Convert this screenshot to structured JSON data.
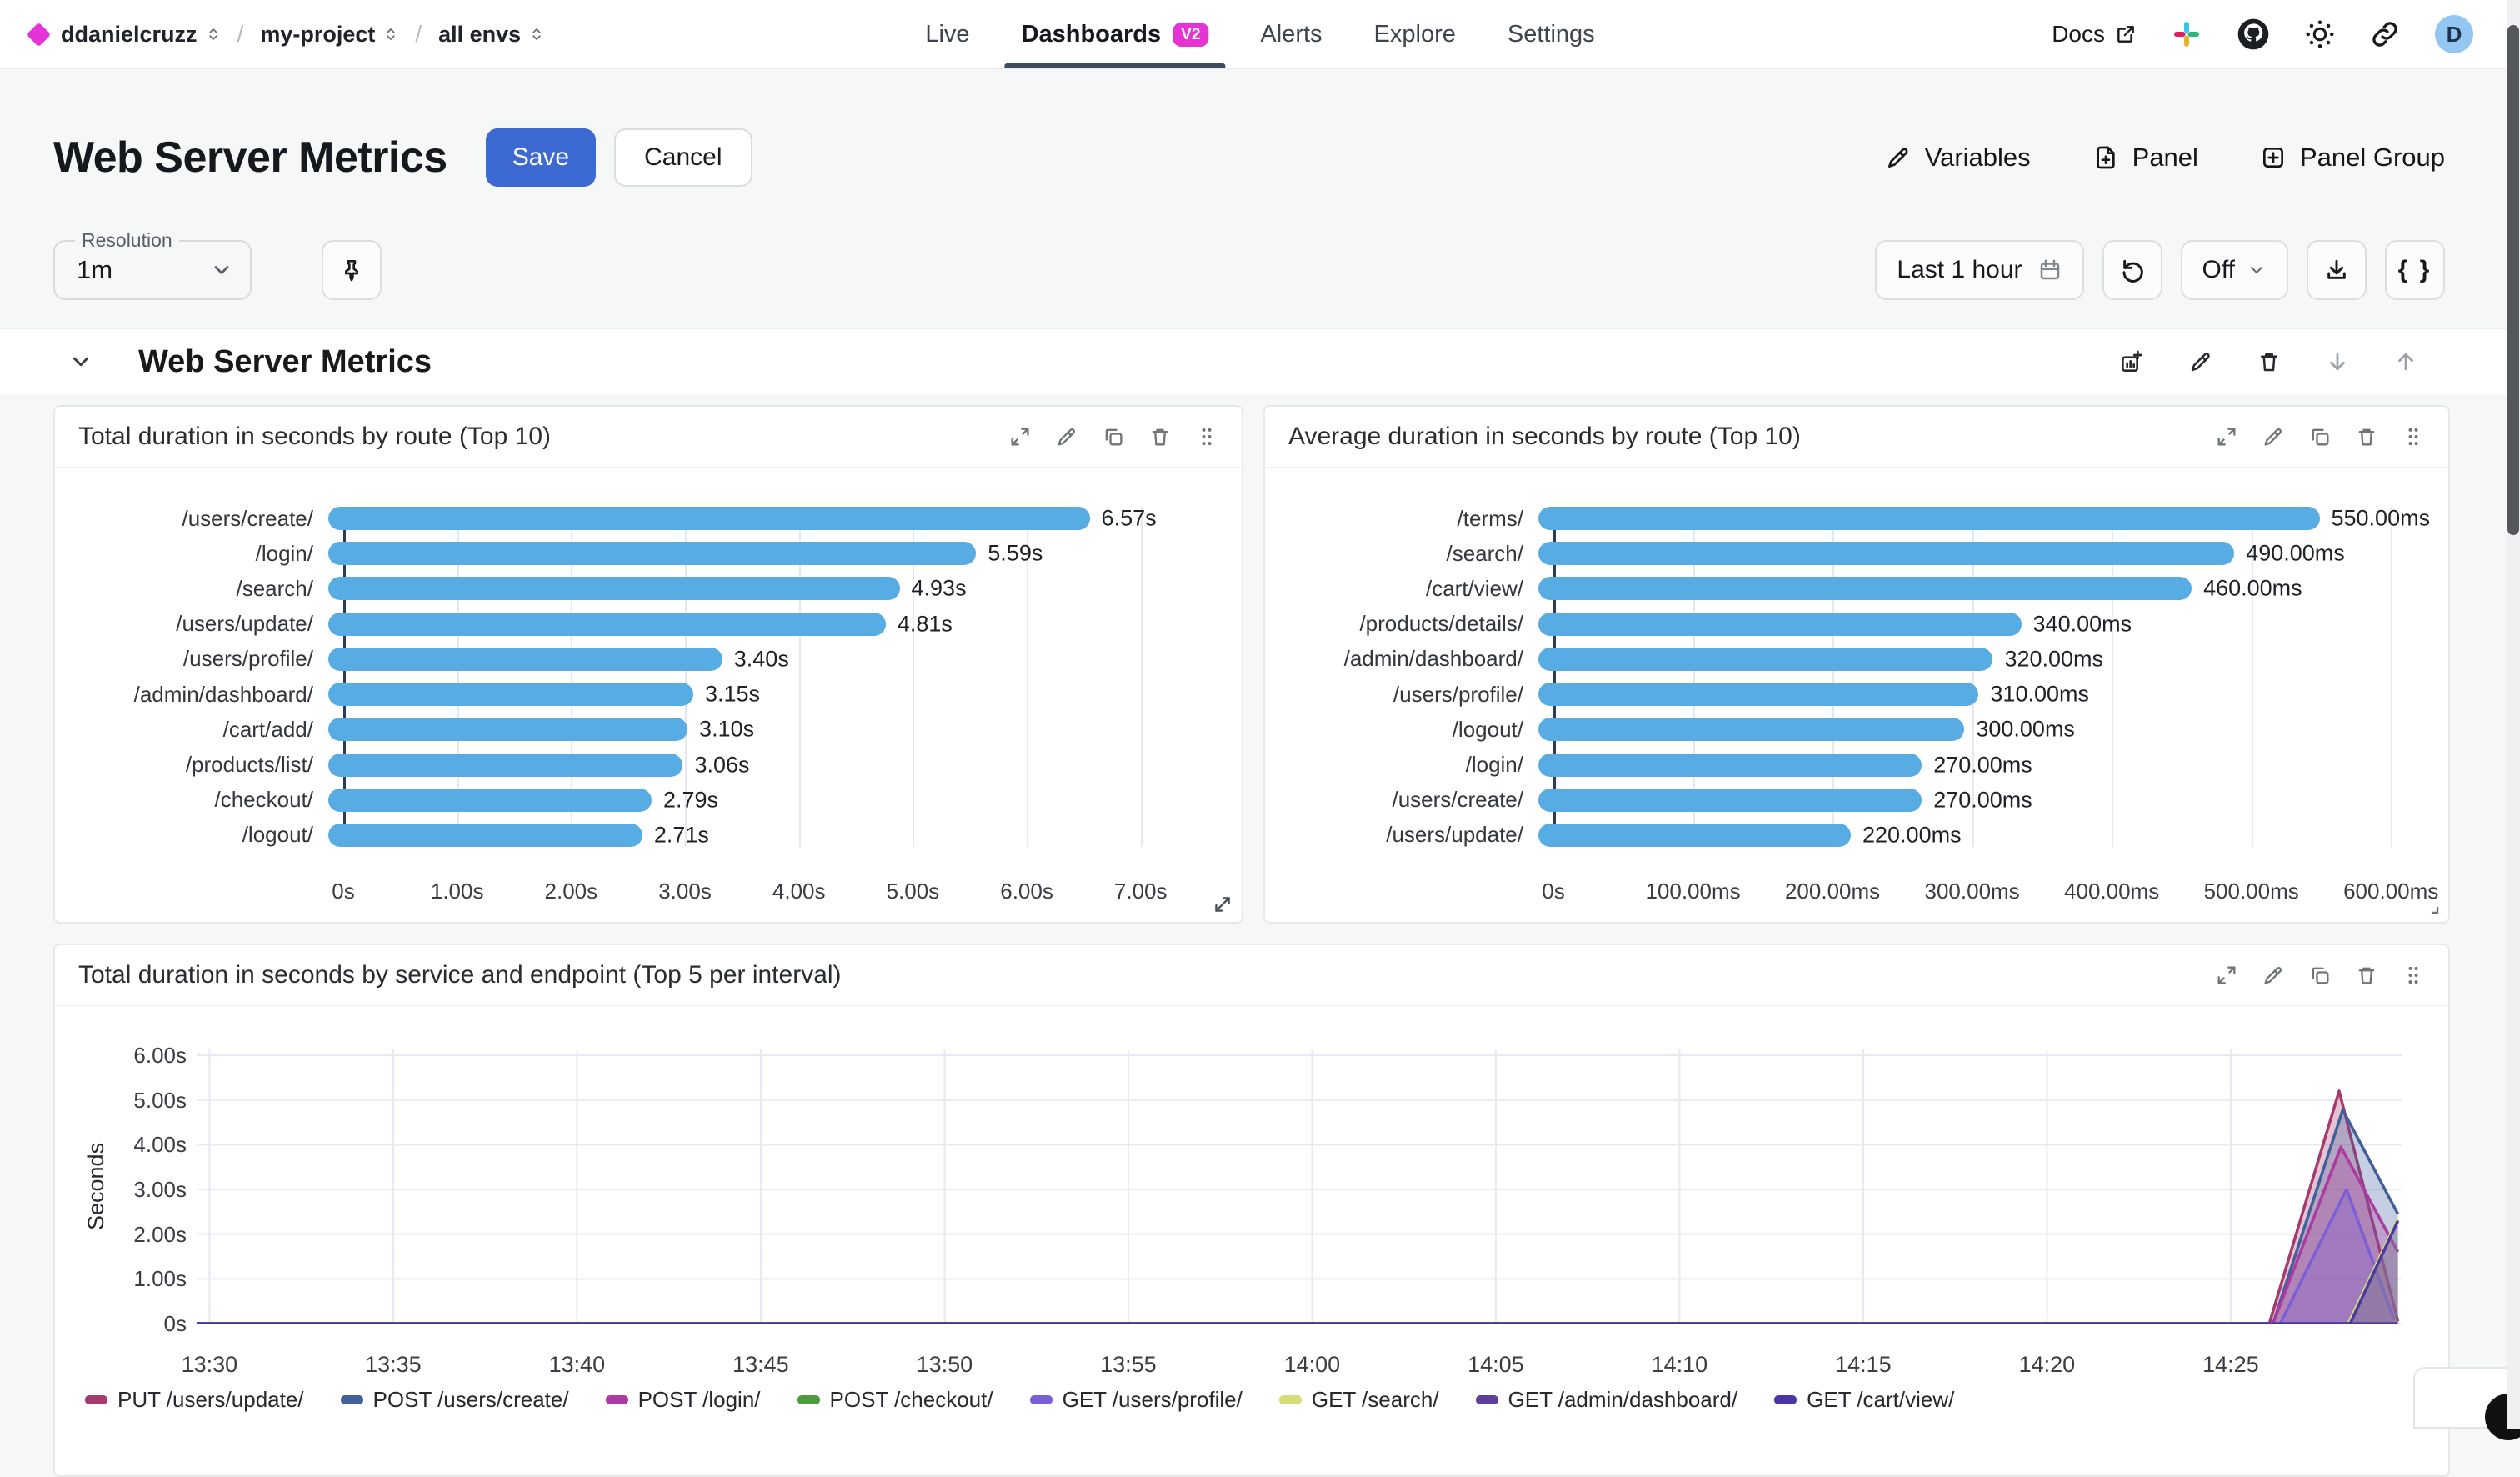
{
  "nav": {
    "breadcrumb": {
      "org": "ddanielcruzz",
      "project": "my-project",
      "env": "all envs",
      "separator": "/"
    },
    "tabs": [
      {
        "label": "Live",
        "active": false
      },
      {
        "label": "Dashboards",
        "active": true,
        "badge": "V2"
      },
      {
        "label": "Alerts",
        "active": false
      },
      {
        "label": "Explore",
        "active": false
      },
      {
        "label": "Settings",
        "active": false
      }
    ],
    "docs_label": "Docs",
    "right_icons": [
      "external-link-icon",
      "slack-icon",
      "github-icon",
      "brightness-icon",
      "link-icon"
    ],
    "avatar_initial": "D"
  },
  "header": {
    "title": "Web Server Metrics",
    "save_label": "Save",
    "cancel_label": "Cancel",
    "variables_label": "Variables",
    "panel_label": "Panel",
    "panel_group_label": "Panel Group"
  },
  "toolbar": {
    "resolution_label": "Resolution",
    "resolution_value": "1m",
    "time_range": "Last 1 hour",
    "refresh_state": "Off",
    "braces_label": "{ }",
    "icons": [
      "pin-icon",
      "calendar-icon",
      "refresh-icon",
      "chevron-down-icon",
      "download-icon"
    ]
  },
  "section": {
    "title": "Web Server Metrics",
    "actions": [
      "add-panel-icon",
      "edit-icon",
      "delete-icon",
      "move-down-icon",
      "move-up-icon"
    ]
  },
  "panel_actions": [
    "expand-icon",
    "edit-icon",
    "duplicate-icon",
    "delete-icon",
    "drag-handle-icon"
  ],
  "colors": {
    "accent_magenta": "#E434D4",
    "primary_blue": "#3D69D2",
    "bar_blue": "#57ADE3",
    "active_tab_underline": "#3D4B5F",
    "avatar_bg": "#93C6F1",
    "axis_line": "#2C3A5C"
  },
  "chart_data": [
    {
      "type": "bar",
      "orientation": "horizontal",
      "title": "Total duration in seconds by route (Top 10)",
      "categories": [
        "/users/create/",
        "/login/",
        "/search/",
        "/users/update/",
        "/users/profile/",
        "/admin/dashboard/",
        "/cart/add/",
        "/products/list/",
        "/checkout/",
        "/logout/"
      ],
      "values": [
        6.57,
        5.59,
        4.93,
        4.81,
        3.4,
        3.15,
        3.1,
        3.06,
        2.79,
        2.71
      ],
      "value_labels": [
        "6.57s",
        "5.59s",
        "4.93s",
        "4.81s",
        "3.40s",
        "3.15s",
        "3.10s",
        "3.06s",
        "2.79s",
        "2.71s"
      ],
      "x_ticks": [
        0,
        1,
        2,
        3,
        4,
        5,
        6,
        7
      ],
      "x_tick_labels": [
        "0s",
        "1.00s",
        "2.00s",
        "3.00s",
        "4.00s",
        "5.00s",
        "6.00s",
        "7.00s"
      ],
      "xlim": [
        0,
        7.58
      ],
      "bar_color": "#57ADE3",
      "grid": true
    },
    {
      "type": "bar",
      "orientation": "horizontal",
      "title": "Average duration in seconds by route (Top 10)",
      "categories": [
        "/terms/",
        "/search/",
        "/cart/view/",
        "/products/details/",
        "/admin/dashboard/",
        "/users/profile/",
        "/logout/",
        "/login/",
        "/users/create/",
        "/users/update/"
      ],
      "values": [
        550,
        490,
        460,
        340,
        320,
        310,
        300,
        270,
        270,
        220
      ],
      "value_labels": [
        "550.00ms",
        "490.00ms",
        "460.00ms",
        "340.00ms",
        "320.00ms",
        "310.00ms",
        "300.00ms",
        "270.00ms",
        "270.00ms",
        "220.00ms"
      ],
      "x_ticks": [
        0,
        100,
        200,
        300,
        400,
        500,
        600
      ],
      "x_tick_labels": [
        "0s",
        "100.00ms",
        "200.00ms",
        "300.00ms",
        "400.00ms",
        "500.00ms",
        "600.00ms"
      ],
      "xlim": [
        0,
        616
      ],
      "bar_color": "#57ADE3",
      "grid": true
    },
    {
      "type": "area",
      "title": "Total duration in seconds by service and endpoint (Top 5 per interval)",
      "ylabel": "Seconds",
      "y_ticks": [
        0,
        1,
        2,
        3,
        4,
        5,
        6
      ],
      "y_tick_labels": [
        "0s",
        "1.00s",
        "2.00s",
        "3.00s",
        "4.00s",
        "5.00s",
        "6.00s"
      ],
      "ylim": [
        0,
        6.15
      ],
      "x_tick_labels": [
        "13:30",
        "13:35",
        "13:40",
        "13:45",
        "13:50",
        "13:55",
        "14:00",
        "14:05",
        "14:10",
        "14:15",
        "14:20",
        "14:25"
      ],
      "x_domain_minutes": [
        0,
        60
      ],
      "x_first_tick_minute": 0.35,
      "x_tick_step_minutes": 5,
      "grid": true,
      "legend_position": "bottom",
      "series": [
        {
          "name": "PUT /users/update/",
          "color": "#A53A6E",
          "points": [
            [
              0,
              0
            ],
            [
              56.4,
              0
            ],
            [
              58.3,
              5.2
            ],
            [
              59.9,
              0.05
            ]
          ]
        },
        {
          "name": "POST /users/create/",
          "color": "#41609B",
          "points": [
            [
              0,
              0
            ],
            [
              56.5,
              0
            ],
            [
              58.4,
              4.78
            ],
            [
              59.9,
              2.45
            ]
          ]
        },
        {
          "name": "POST /login/",
          "color": "#AC3AA0",
          "points": [
            [
              0,
              0
            ],
            [
              56.5,
              0
            ],
            [
              58.35,
              3.95
            ],
            [
              59.9,
              1.6
            ]
          ]
        },
        {
          "name": "POST /checkout/",
          "color": "#4E9A3F",
          "points": [
            [
              0,
              0
            ],
            [
              59.9,
              0
            ]
          ]
        },
        {
          "name": "GET /users/profile/",
          "color": "#7B5ED4",
          "points": [
            [
              0,
              0
            ],
            [
              56.7,
              0
            ],
            [
              58.5,
              3.0
            ],
            [
              59.8,
              0.08
            ]
          ]
        },
        {
          "name": "GET /search/",
          "color": "#D6DC77",
          "points": [
            [
              0,
              0
            ],
            [
              58.55,
              0
            ],
            [
              59.9,
              2.35
            ]
          ]
        },
        {
          "name": "GET /admin/dashboard/",
          "color": "#5C3F9B",
          "points": [
            [
              0,
              0
            ],
            [
              59.9,
              0
            ]
          ]
        },
        {
          "name": "GET /cart/view/",
          "color": "#4A37A4",
          "points": [
            [
              0,
              0
            ],
            [
              58.6,
              0
            ],
            [
              59.9,
              2.3
            ]
          ]
        }
      ]
    }
  ]
}
